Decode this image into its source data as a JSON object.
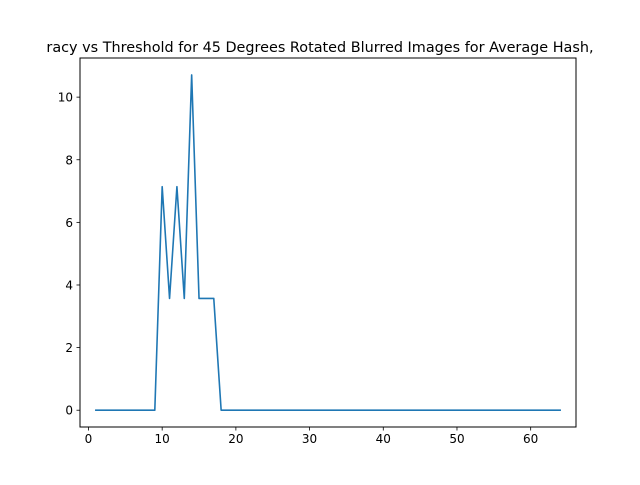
{
  "chart_data": {
    "type": "line",
    "title": "racy vs Threshold for 45 Degrees Rotated Blurred Images for Average Hash,",
    "xlabel": "",
    "ylabel": "",
    "xlim": [
      -1.15,
      66.15
    ],
    "ylim": [
      -0.536,
      11.25
    ],
    "x_ticks": [
      0,
      10,
      20,
      30,
      40,
      50,
      60
    ],
    "y_ticks": [
      0,
      2,
      4,
      6,
      8,
      10
    ],
    "grid": false,
    "series": [
      {
        "color": "#1f77b4",
        "x": [
          1,
          2,
          3,
          4,
          5,
          6,
          7,
          8,
          9,
          10,
          11,
          12,
          13,
          14,
          15,
          16,
          17,
          18,
          19,
          20,
          21,
          22,
          23,
          24,
          25,
          26,
          27,
          28,
          29,
          30,
          31,
          32,
          33,
          34,
          35,
          36,
          37,
          38,
          39,
          40,
          41,
          42,
          43,
          44,
          45,
          46,
          47,
          48,
          49,
          50,
          51,
          52,
          53,
          54,
          55,
          56,
          57,
          58,
          59,
          60,
          61,
          62,
          63,
          64
        ],
        "y": [
          0,
          0,
          0,
          0,
          0,
          0,
          0,
          0,
          0,
          7.14,
          3.57,
          7.14,
          3.57,
          10.71,
          3.57,
          3.57,
          3.57,
          0,
          0,
          0,
          0,
          0,
          0,
          0,
          0,
          0,
          0,
          0,
          0,
          0,
          0,
          0,
          0,
          0,
          0,
          0,
          0,
          0,
          0,
          0,
          0,
          0,
          0,
          0,
          0,
          0,
          0,
          0,
          0,
          0,
          0,
          0,
          0,
          0,
          0,
          0,
          0,
          0,
          0,
          0,
          0,
          0,
          0,
          0
        ]
      }
    ]
  }
}
